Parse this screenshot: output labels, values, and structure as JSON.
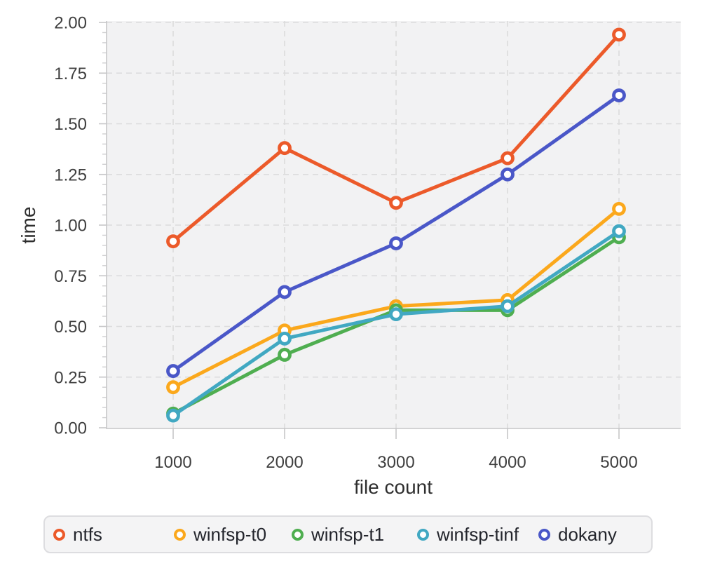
{
  "chart_data": {
    "type": "line",
    "title": "",
    "xlabel": "file count",
    "ylabel": "time",
    "x": [
      1000,
      2000,
      3000,
      4000,
      5000
    ],
    "x_ticks": [
      "1000",
      "2000",
      "3000",
      "4000",
      "5000"
    ],
    "y_ticks": [
      "0.00",
      "0.25",
      "0.50",
      "0.75",
      "1.00",
      "1.25",
      "1.50",
      "1.75",
      "2.00"
    ],
    "ylim": [
      0,
      2
    ],
    "y_minor_step": 0.05,
    "grid": "dashed-major-both-axes",
    "plot_background": "#F2F2F3",
    "gridline_color": "#DBDBDC",
    "axis_color": "#C6C6C8",
    "tick_label_color": "#3F3F3F",
    "axis_title_color": "#2E2E2E",
    "marker": "open-circle",
    "legend_position": "bottom",
    "series": [
      {
        "name": "ntfs",
        "color": "#EC5A2A",
        "values": [
          0.92,
          1.38,
          1.11,
          1.33,
          1.94
        ]
      },
      {
        "name": "winfsp-t0",
        "color": "#FBA81C",
        "values": [
          0.2,
          0.48,
          0.6,
          0.63,
          1.08
        ]
      },
      {
        "name": "winfsp-t1",
        "color": "#4FAE50",
        "values": [
          0.07,
          0.36,
          0.58,
          0.58,
          0.94
        ]
      },
      {
        "name": "winfsp-tinf",
        "color": "#41A8C2",
        "values": [
          0.06,
          0.44,
          0.56,
          0.6,
          0.97
        ]
      },
      {
        "name": "dokany",
        "color": "#4A57C8",
        "values": [
          0.28,
          0.67,
          0.91,
          1.25,
          1.64
        ]
      }
    ]
  }
}
